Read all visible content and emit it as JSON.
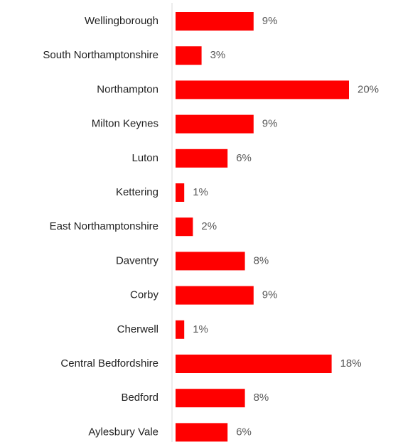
{
  "chart_data": {
    "type": "barh",
    "categories": [
      "Wellingborough",
      "South Northamptonshire",
      "Northampton",
      "Milton Keynes",
      "Luton",
      "Kettering",
      "East Northamptonshire",
      "Daventry",
      "Corby",
      "Cherwell",
      "Central Bedfordshire",
      "Bedford",
      "Aylesbury Vale"
    ],
    "values": [
      9,
      3,
      20,
      9,
      6,
      1,
      2,
      8,
      9,
      1,
      18,
      8,
      6
    ],
    "value_labels": [
      "9%",
      "3%",
      "20%",
      "9%",
      "6%",
      "1%",
      "2%",
      "8%",
      "9%",
      "1%",
      "18%",
      "8%",
      "6%"
    ],
    "color": "#ff0000",
    "xlim": [
      0,
      20
    ]
  }
}
